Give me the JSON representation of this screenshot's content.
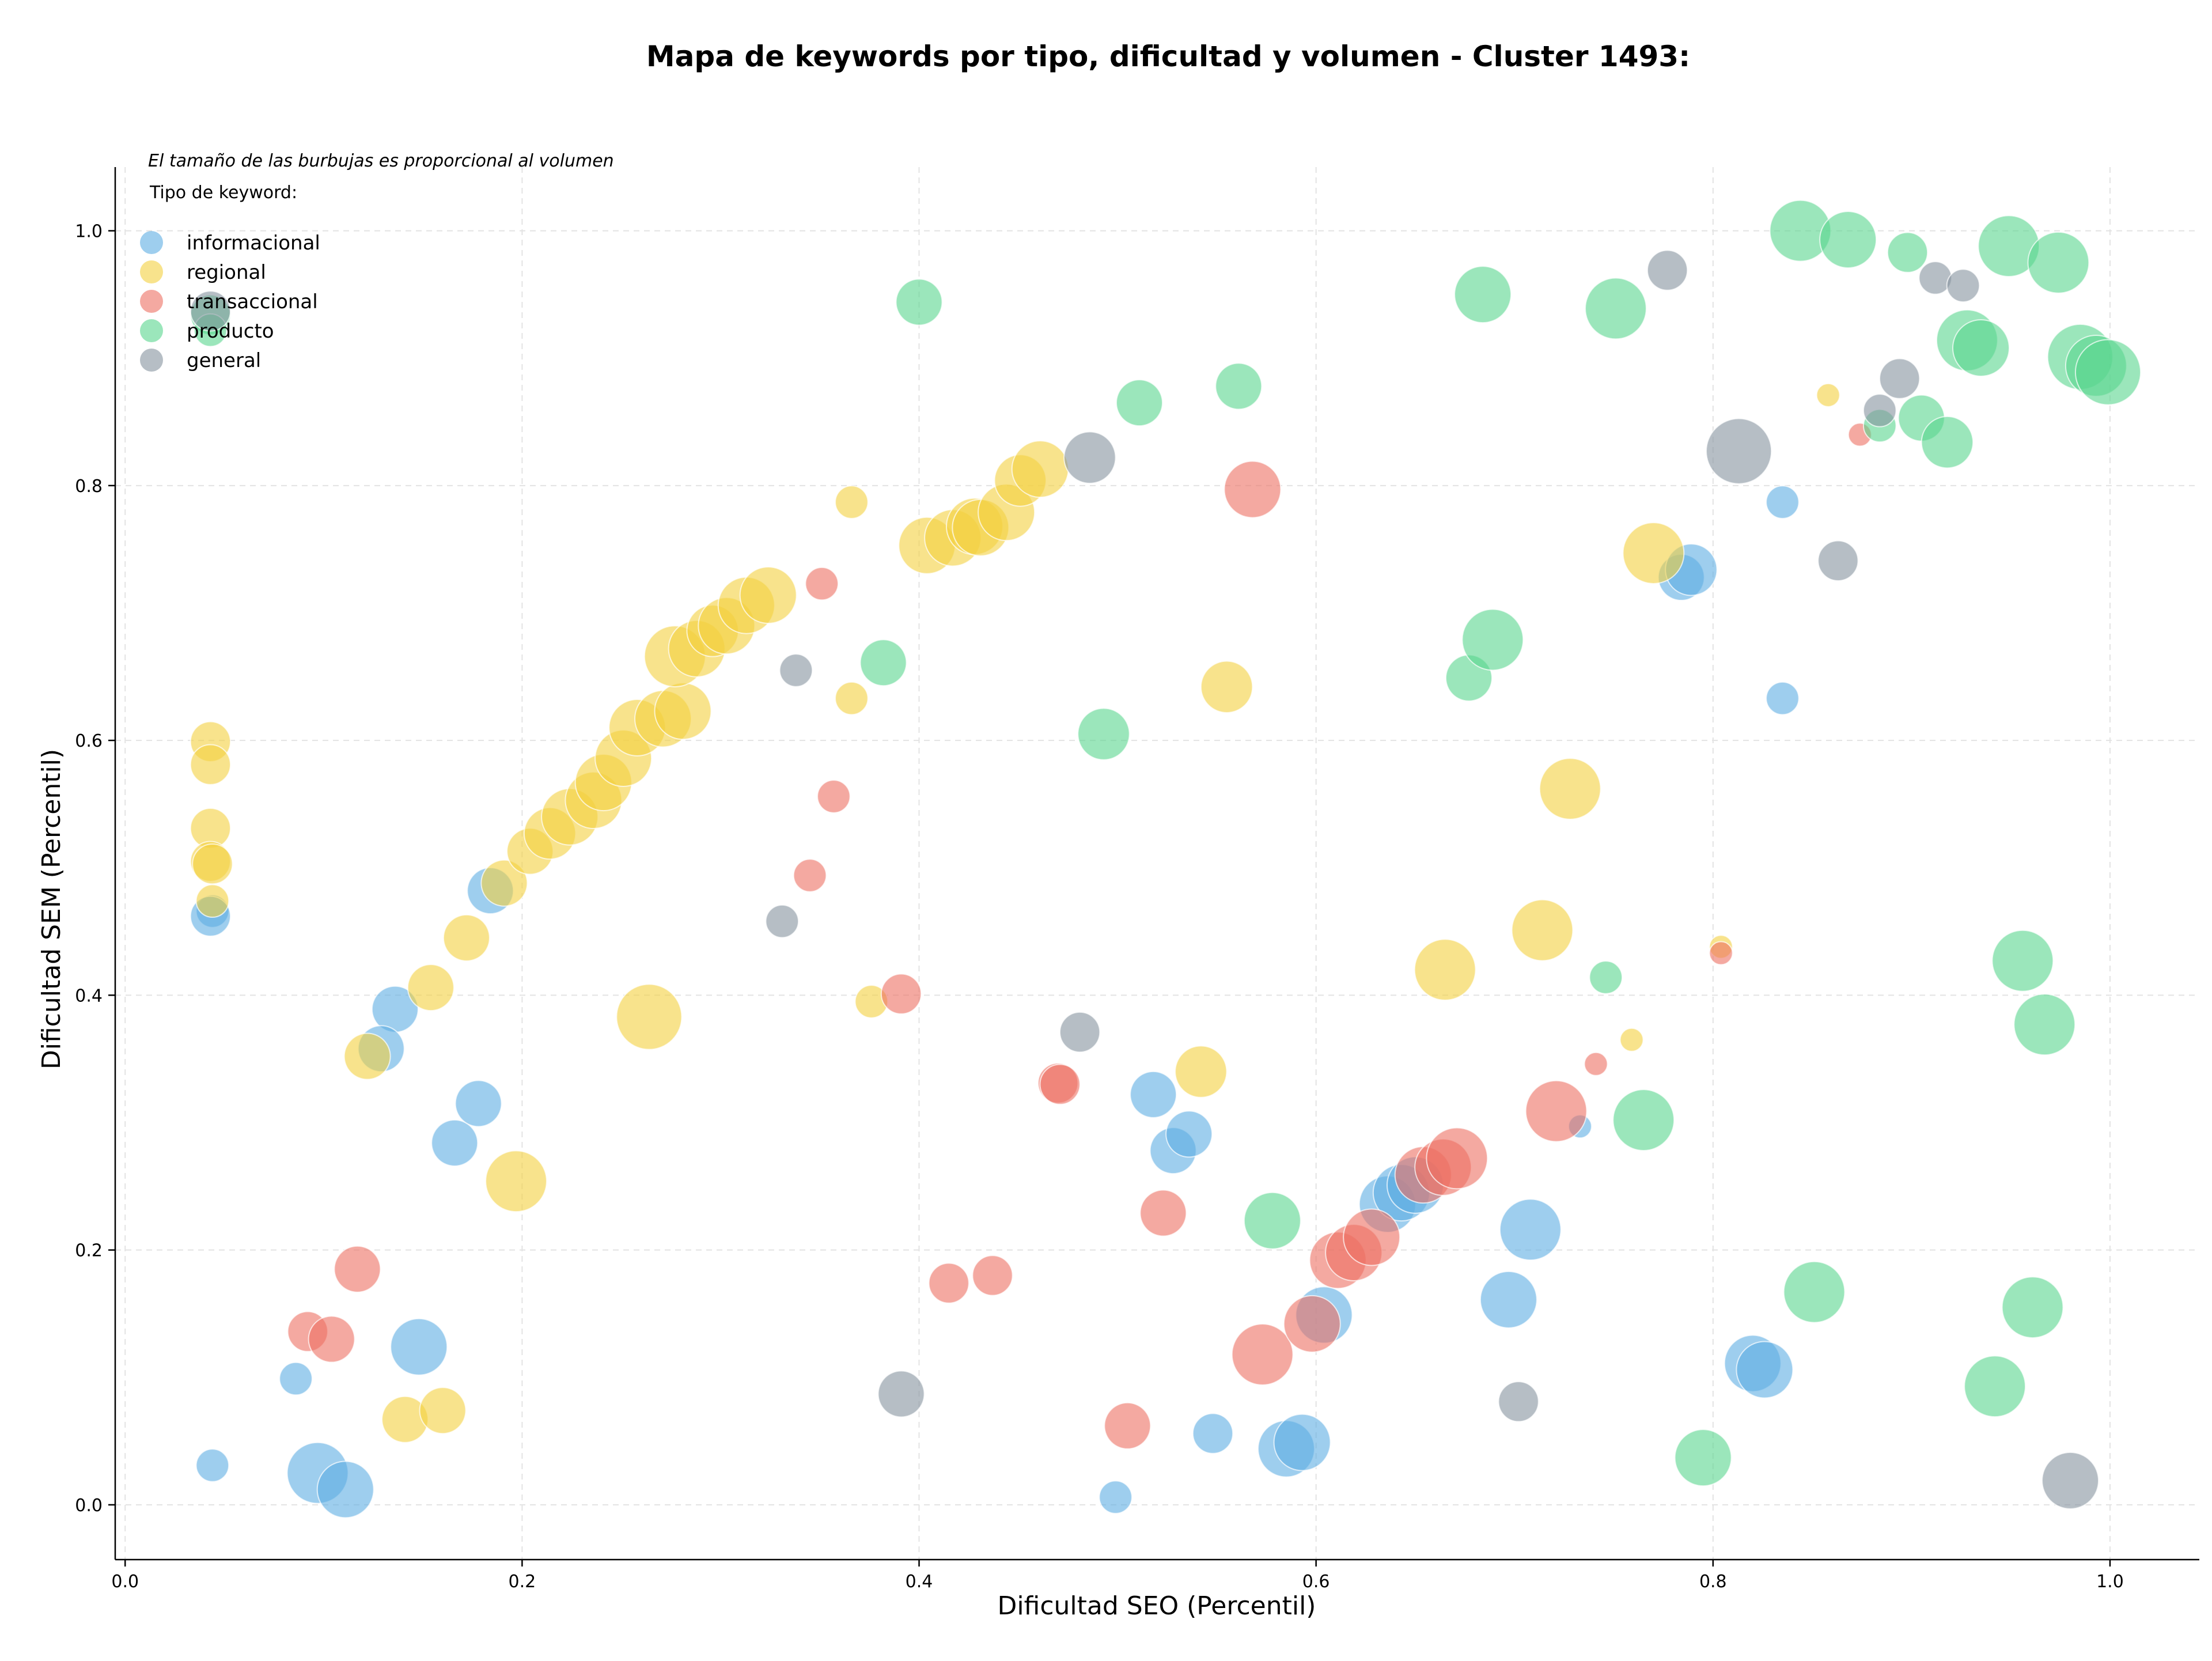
{
  "chart_data": {
    "type": "scatter",
    "title": "Mapa de keywords por tipo, dificultad y volumen - Cluster 1493:",
    "xlabel": "Dificultad SEO (Percentil)",
    "ylabel": "Dificultad SEM (Percentil)",
    "note": "El tamaño de las burbujas es proporcional al volumen",
    "legend_title": "Tipo de keyword:",
    "legend_position": "top-left",
    "xlim": [
      -0.005,
      1.045
    ],
    "ylim": [
      -0.043,
      1.05
    ],
    "xticks": [
      0.0,
      0.2,
      0.4,
      0.6,
      0.8,
      1.0
    ],
    "yticks": [
      0.0,
      0.2,
      0.4,
      0.6,
      0.8,
      1.0
    ],
    "xtick_labels": [
      "0.0",
      "0.2",
      "0.4",
      "0.6",
      "0.8",
      "1.0"
    ],
    "ytick_labels": [
      "0.0",
      "0.2",
      "0.4",
      "0.6",
      "0.8",
      "1.0"
    ],
    "grid": true,
    "series": [
      {
        "name": "informacional",
        "color": "#5DADE2",
        "points": [
          [
            0.044,
            0.466,
            2
          ],
          [
            0.043,
            0.462,
            3
          ],
          [
            0.044,
            0.031,
            2
          ],
          [
            0.086,
            0.099,
            2
          ],
          [
            0.097,
            0.025,
            7
          ],
          [
            0.111,
            0.012,
            6
          ],
          [
            0.136,
            0.389,
            4
          ],
          [
            0.129,
            0.358,
            4
          ],
          [
            0.148,
            0.124,
            6
          ],
          [
            0.166,
            0.284,
            4
          ],
          [
            0.178,
            0.315,
            4
          ],
          [
            0.184,
            0.482,
            4
          ],
          [
            0.499,
            0.006,
            2
          ],
          [
            0.518,
            0.322,
            4
          ],
          [
            0.528,
            0.278,
            4
          ],
          [
            0.536,
            0.291,
            4
          ],
          [
            0.548,
            0.056,
            3
          ],
          [
            0.585,
            0.044,
            6
          ],
          [
            0.593,
            0.049,
            6
          ],
          [
            0.604,
            0.149,
            6
          ],
          [
            0.636,
            0.236,
            6
          ],
          [
            0.643,
            0.245,
            6
          ],
          [
            0.65,
            0.251,
            6
          ],
          [
            0.697,
            0.161,
            6
          ],
          [
            0.708,
            0.216,
            7
          ],
          [
            0.784,
            0.728,
            4
          ],
          [
            0.789,
            0.734,
            5
          ],
          [
            0.82,
            0.111,
            6
          ],
          [
            0.826,
            0.106,
            6
          ],
          [
            0.835,
            0.787,
            2
          ],
          [
            0.835,
            0.633,
            2
          ],
          [
            0.733,
            0.297,
            1
          ]
        ]
      },
      {
        "name": "regional",
        "color": "#F4D03F",
        "points": [
          [
            0.043,
            0.599,
            3
          ],
          [
            0.043,
            0.581,
            3
          ],
          [
            0.043,
            0.531,
            3
          ],
          [
            0.043,
            0.505,
            3
          ],
          [
            0.044,
            0.503,
            3
          ],
          [
            0.044,
            0.474,
            2
          ],
          [
            0.122,
            0.352,
            4
          ],
          [
            0.141,
            0.067,
            4
          ],
          [
            0.16,
            0.074,
            4
          ],
          [
            0.154,
            0.406,
            4
          ],
          [
            0.172,
            0.445,
            4
          ],
          [
            0.191,
            0.488,
            4
          ],
          [
            0.197,
            0.254,
            7
          ],
          [
            0.204,
            0.513,
            4
          ],
          [
            0.214,
            0.527,
            5
          ],
          [
            0.224,
            0.54,
            6
          ],
          [
            0.236,
            0.553,
            6
          ],
          [
            0.241,
            0.567,
            6
          ],
          [
            0.251,
            0.586,
            6
          ],
          [
            0.258,
            0.61,
            6
          ],
          [
            0.271,
            0.617,
            6
          ],
          [
            0.281,
            0.623,
            6
          ],
          [
            0.277,
            0.666,
            7
          ],
          [
            0.288,
            0.672,
            6
          ],
          [
            0.296,
            0.686,
            5
          ],
          [
            0.303,
            0.69,
            6
          ],
          [
            0.313,
            0.706,
            6
          ],
          [
            0.324,
            0.714,
            6
          ],
          [
            0.264,
            0.383,
            8
          ],
          [
            0.366,
            0.787,
            2
          ],
          [
            0.366,
            0.633,
            2
          ],
          [
            0.376,
            0.395,
            2
          ],
          [
            0.404,
            0.753,
            6
          ],
          [
            0.417,
            0.759,
            6
          ],
          [
            0.428,
            0.768,
            6
          ],
          [
            0.431,
            0.767,
            6
          ],
          [
            0.444,
            0.779,
            6
          ],
          [
            0.451,
            0.804,
            5
          ],
          [
            0.461,
            0.813,
            6
          ],
          [
            0.542,
            0.34,
            5
          ],
          [
            0.555,
            0.642,
            5
          ],
          [
            0.665,
            0.42,
            7
          ],
          [
            0.714,
            0.451,
            7
          ],
          [
            0.728,
            0.562,
            7
          ],
          [
            0.759,
            0.365,
            1
          ],
          [
            0.77,
            0.747,
            7
          ],
          [
            0.804,
            0.438,
            1
          ],
          [
            0.858,
            0.871,
            1
          ]
        ]
      },
      {
        "name": "transaccional",
        "color": "#EC7063",
        "points": [
          [
            0.092,
            0.136,
            3
          ],
          [
            0.104,
            0.13,
            4
          ],
          [
            0.117,
            0.185,
            4
          ],
          [
            0.351,
            0.723,
            2
          ],
          [
            0.357,
            0.556,
            2
          ],
          [
            0.345,
            0.494,
            2
          ],
          [
            0.391,
            0.401,
            3
          ],
          [
            0.415,
            0.174,
            3
          ],
          [
            0.437,
            0.18,
            3
          ],
          [
            0.47,
            0.331,
            3
          ],
          [
            0.471,
            0.33,
            3
          ],
          [
            0.505,
            0.062,
            4
          ],
          [
            0.523,
            0.229,
            4
          ],
          [
            0.568,
            0.797,
            6
          ],
          [
            0.573,
            0.118,
            7
          ],
          [
            0.598,
            0.142,
            6
          ],
          [
            0.611,
            0.192,
            6
          ],
          [
            0.619,
            0.198,
            6
          ],
          [
            0.628,
            0.21,
            6
          ],
          [
            0.654,
            0.259,
            6
          ],
          [
            0.664,
            0.265,
            6
          ],
          [
            0.671,
            0.272,
            7
          ],
          [
            0.721,
            0.309,
            7
          ],
          [
            0.741,
            0.346,
            1
          ],
          [
            0.804,
            0.433,
            1
          ],
          [
            0.874,
            0.84,
            1
          ]
        ]
      },
      {
        "name": "producto",
        "color": "#58D68D",
        "points": [
          [
            0.043,
            0.934,
            3
          ],
          [
            0.043,
            0.922,
            2
          ],
          [
            0.4,
            0.944,
            4
          ],
          [
            0.382,
            0.661,
            4
          ],
          [
            0.493,
            0.605,
            5
          ],
          [
            0.511,
            0.865,
            4
          ],
          [
            0.561,
            0.878,
            4
          ],
          [
            0.578,
            0.223,
            6
          ],
          [
            0.677,
            0.649,
            4
          ],
          [
            0.684,
            0.95,
            6
          ],
          [
            0.689,
            0.679,
            7
          ],
          [
            0.746,
            0.414,
            2
          ],
          [
            0.751,
            0.939,
            7
          ],
          [
            0.765,
            0.302,
            7
          ],
          [
            0.795,
            0.037,
            6
          ],
          [
            0.844,
            1.0,
            7
          ],
          [
            0.851,
            0.167,
            7
          ],
          [
            0.868,
            0.993,
            6
          ],
          [
            0.884,
            0.847,
            2
          ],
          [
            0.898,
            0.983,
            3
          ],
          [
            0.905,
            0.853,
            4
          ],
          [
            0.918,
            0.834,
            5
          ],
          [
            0.928,
            0.914,
            7
          ],
          [
            0.935,
            0.908,
            6
          ],
          [
            0.942,
            0.093,
            7
          ],
          [
            0.949,
            0.988,
            7
          ],
          [
            0.956,
            0.427,
            7
          ],
          [
            0.961,
            0.155,
            7
          ],
          [
            0.967,
            0.377,
            7
          ],
          [
            0.974,
            0.975,
            7
          ],
          [
            0.985,
            0.901,
            8
          ],
          [
            0.993,
            0.894,
            7
          ],
          [
            0.999,
            0.889,
            8
          ]
        ]
      },
      {
        "name": "general",
        "color": "#85929E",
        "points": [
          [
            0.043,
            0.937,
            3
          ],
          [
            0.331,
            0.458,
            2
          ],
          [
            0.338,
            0.655,
            2
          ],
          [
            0.391,
            0.087,
            4
          ],
          [
            0.481,
            0.371,
            3
          ],
          [
            0.486,
            0.822,
            5
          ],
          [
            0.702,
            0.081,
            3
          ],
          [
            0.777,
            0.969,
            3
          ],
          [
            0.813,
            0.827,
            8
          ],
          [
            0.863,
            0.741,
            3
          ],
          [
            0.884,
            0.859,
            2
          ],
          [
            0.894,
            0.884,
            3
          ],
          [
            0.912,
            0.963,
            2
          ],
          [
            0.926,
            0.957,
            2
          ],
          [
            0.98,
            0.019,
            6
          ]
        ]
      }
    ]
  }
}
